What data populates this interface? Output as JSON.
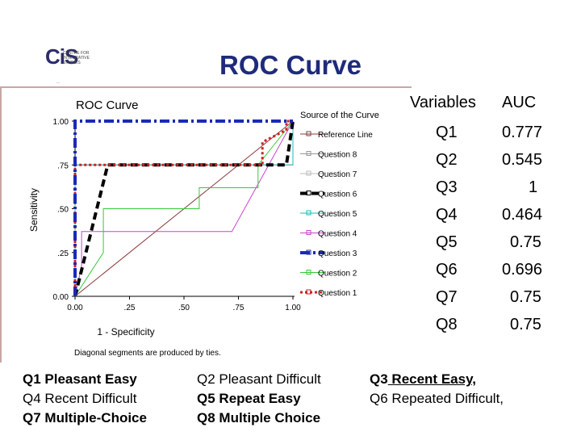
{
  "slide_title": "ROC Curve",
  "logo": {
    "text": "CiS",
    "tagline": "..."
  },
  "table": {
    "headers": [
      "Variables",
      "AUC"
    ],
    "rows": [
      [
        "Q1",
        "0.777"
      ],
      [
        "Q2",
        "0.545"
      ],
      [
        "Q3",
        "1"
      ],
      [
        "Q4",
        "0.464"
      ],
      [
        "Q5",
        "0.75"
      ],
      [
        "Q6",
        "0.696"
      ],
      [
        "Q7",
        "0.75"
      ],
      [
        "Q8",
        "0.75"
      ]
    ]
  },
  "question_key": {
    "col1": [
      {
        "q": "Q1",
        "text": " Pleasant Easy",
        "bold": true
      },
      {
        "q": "Q4",
        "text": " Recent Difficult",
        "bold": false
      },
      {
        "q": "Q7",
        "text": " Multiple-Choice",
        "bold": true
      }
    ],
    "col2": [
      {
        "q": "Q2",
        "text": " Pleasant Difficult",
        "bold": false
      },
      {
        "q": "Q5",
        "text": " Repeat Easy",
        "bold": true
      },
      {
        "q": "Q8",
        "text": " Multiple Choice",
        "bold": true
      }
    ],
    "col3": [
      {
        "q": "Q3",
        "text": " Recent Easy,",
        "bold": true,
        "underline": true
      },
      {
        "q": "Q6",
        "text": " Repeated Difficult,",
        "bold": false
      }
    ]
  },
  "chart_data": {
    "type": "line",
    "title": "ROC Curve",
    "xlabel": "1 - Specificity",
    "ylabel": "Sensitivity",
    "xlim": [
      0,
      1
    ],
    "ylim": [
      0,
      1
    ],
    "x_ticks": [
      "0.00",
      ".25",
      ".50",
      ".75",
      "1.00"
    ],
    "y_ticks": [
      "0.00",
      ".25",
      ".50",
      ".75",
      "1.00"
    ],
    "legend_title": "Source of the Curve",
    "legend_position": "right",
    "footnote": "Diagonal segments are produced by ties.",
    "series": [
      {
        "name": "Reference Line",
        "color": "#8b3a3a",
        "dash": "solid",
        "width": 1,
        "x": [
          0,
          1
        ],
        "y": [
          0,
          1
        ]
      },
      {
        "name": "Question 8",
        "color": "#999999",
        "dash": "solid",
        "width": 1,
        "x": [
          0,
          0,
          1,
          1
        ],
        "y": [
          0,
          0.75,
          0.75,
          1
        ]
      },
      {
        "name": "Question 7",
        "color": "#bbbbbb",
        "dash": "solid",
        "width": 1,
        "x": [
          0,
          0,
          1,
          1
        ],
        "y": [
          0,
          0.75,
          0.75,
          1
        ]
      },
      {
        "name": "Question 6",
        "color": "#000000",
        "dash": "9,5",
        "width": 4,
        "x": [
          0,
          0.08,
          0.15,
          0.97,
          1
        ],
        "y": [
          0,
          0.4,
          0.75,
          0.75,
          1
        ]
      },
      {
        "name": "Question 5",
        "color": "#22bbbb",
        "dash": "solid",
        "width": 1,
        "x": [
          0,
          0,
          1,
          1
        ],
        "y": [
          0,
          0.75,
          0.75,
          1
        ]
      },
      {
        "name": "Question 4",
        "color": "#cc44cc",
        "dash": "solid",
        "width": 1,
        "x": [
          0,
          0.03,
          0.03,
          0.72,
          1
        ],
        "y": [
          0,
          0.17,
          0.37,
          0.37,
          1
        ]
      },
      {
        "name": "Question 3",
        "color": "#1a2ab5",
        "dash": "12,4,3,4",
        "width": 4,
        "x": [
          0,
          0,
          1,
          1
        ],
        "y": [
          0,
          1,
          1,
          1
        ]
      },
      {
        "name": "Question 2",
        "color": "#33cc33",
        "dash": "solid",
        "width": 1,
        "x": [
          0,
          0.13,
          0.13,
          0.57,
          0.57,
          0.84,
          0.84,
          1
        ],
        "y": [
          0,
          0.25,
          0.5,
          0.5,
          0.62,
          0.62,
          0.75,
          1
        ]
      },
      {
        "name": "Question 1",
        "color": "#cc2222",
        "dash": "3,3",
        "width": 3,
        "x": [
          0,
          0,
          0.86,
          0.86,
          0.97,
          0.97,
          1
        ],
        "y": [
          0,
          0.75,
          0.75,
          0.88,
          0.95,
          1,
          1
        ]
      }
    ]
  }
}
